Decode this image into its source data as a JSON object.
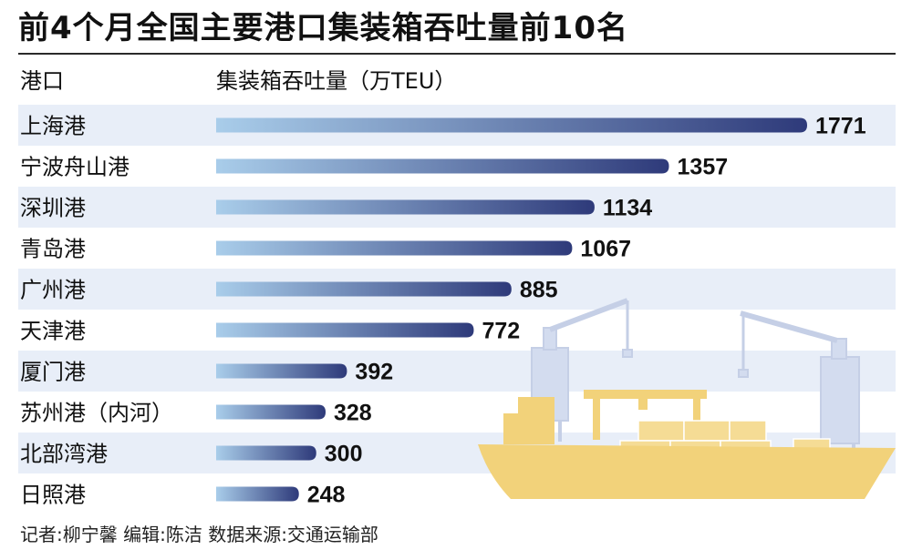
{
  "header": {
    "title": "前4个月全国主要港口集装箱吞吐量前10名",
    "column_port": "港口",
    "column_value": "集装箱吞吐量（万TEU）"
  },
  "footer": {
    "credit": "记者:柳宁馨   编辑:陈洁   数据来源:交通运输部"
  },
  "colors": {
    "bar_start": "#a9cdea",
    "bar_end": "#2e3a7a",
    "row_stripe": "#e8eef8",
    "ship": "#f2d27a",
    "crane": "#d3dcef"
  },
  "chart_data": {
    "type": "bar",
    "orientation": "horizontal",
    "title": "前4个月全国主要港口集装箱吞吐量前10名",
    "xlabel": "集装箱吞吐量（万TEU）",
    "ylabel": "港口",
    "categories": [
      "上海港",
      "宁波舟山港",
      "深圳港",
      "青岛港",
      "广州港",
      "天津港",
      "厦门港",
      "苏州港（内河）",
      "北部湾港",
      "日照港"
    ],
    "values": [
      1771,
      1357,
      1134,
      1067,
      885,
      772,
      392,
      328,
      300,
      248
    ],
    "value_labels": [
      "1771",
      "1357",
      "1134",
      "1067",
      "885",
      "772",
      "392",
      "328",
      "300",
      "248"
    ],
    "xlim": [
      0,
      1771
    ],
    "grid": false,
    "legend": false
  }
}
